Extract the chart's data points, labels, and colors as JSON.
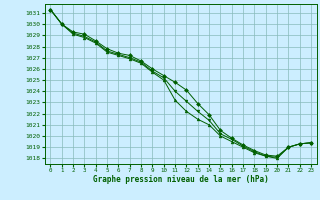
{
  "title": "Graphe pression niveau de la mer (hPa)",
  "background_color": "#cceeff",
  "grid_color": "#88bbbb",
  "line_color": "#006000",
  "marker_color": "#006000",
  "xlim": [
    -0.5,
    23.5
  ],
  "ylim": [
    1017.5,
    1031.8
  ],
  "yticks": [
    1018,
    1019,
    1020,
    1021,
    1022,
    1023,
    1024,
    1025,
    1026,
    1027,
    1028,
    1029,
    1030,
    1031
  ],
  "xticks": [
    0,
    1,
    2,
    3,
    4,
    5,
    6,
    7,
    8,
    9,
    10,
    11,
    12,
    13,
    14,
    15,
    16,
    17,
    18,
    19,
    20,
    21,
    22,
    23
  ],
  "series": [
    {
      "x": [
        0,
        1,
        2,
        3,
        4,
        5,
        6,
        7,
        8,
        9,
        10,
        11,
        12,
        13,
        14,
        15,
        16,
        17,
        18,
        19,
        20,
        21,
        22,
        23
      ],
      "y": [
        1031.3,
        1030.0,
        1029.1,
        1028.8,
        1028.3,
        1027.5,
        1027.2,
        1026.9,
        1026.5,
        1025.7,
        1025.0,
        1023.2,
        1022.2,
        1021.5,
        1021.0,
        1020.0,
        1019.5,
        1019.0,
        1018.5,
        1018.2,
        1018.0,
        1019.0,
        1019.3,
        1019.4
      ],
      "marker": "^"
    },
    {
      "x": [
        0,
        1,
        2,
        3,
        4,
        5,
        6,
        7,
        8,
        9,
        10,
        11,
        12,
        13,
        14,
        15,
        16,
        17,
        18,
        19,
        20,
        21,
        22,
        23
      ],
      "y": [
        1031.3,
        1030.0,
        1029.3,
        1029.1,
        1028.5,
        1027.8,
        1027.4,
        1027.2,
        1026.7,
        1026.0,
        1025.4,
        1024.8,
        1024.1,
        1022.9,
        1021.9,
        1020.5,
        1019.8,
        1019.2,
        1018.7,
        1018.3,
        1018.2,
        1019.0,
        1019.3,
        1019.4
      ],
      "marker": "D"
    },
    {
      "x": [
        0,
        1,
        2,
        3,
        4,
        5,
        6,
        7,
        8,
        9,
        10,
        11,
        12,
        13,
        14,
        15,
        16,
        17,
        18,
        19,
        20,
        21,
        22,
        23
      ],
      "y": [
        1031.3,
        1030.0,
        1029.2,
        1028.9,
        1028.4,
        1027.6,
        1027.3,
        1027.0,
        1026.6,
        1025.8,
        1025.2,
        1024.0,
        1023.1,
        1022.2,
        1021.4,
        1020.2,
        1019.7,
        1019.1,
        1018.6,
        1018.2,
        1018.1,
        1019.0,
        1019.3,
        1019.4
      ],
      "marker": "v"
    }
  ]
}
